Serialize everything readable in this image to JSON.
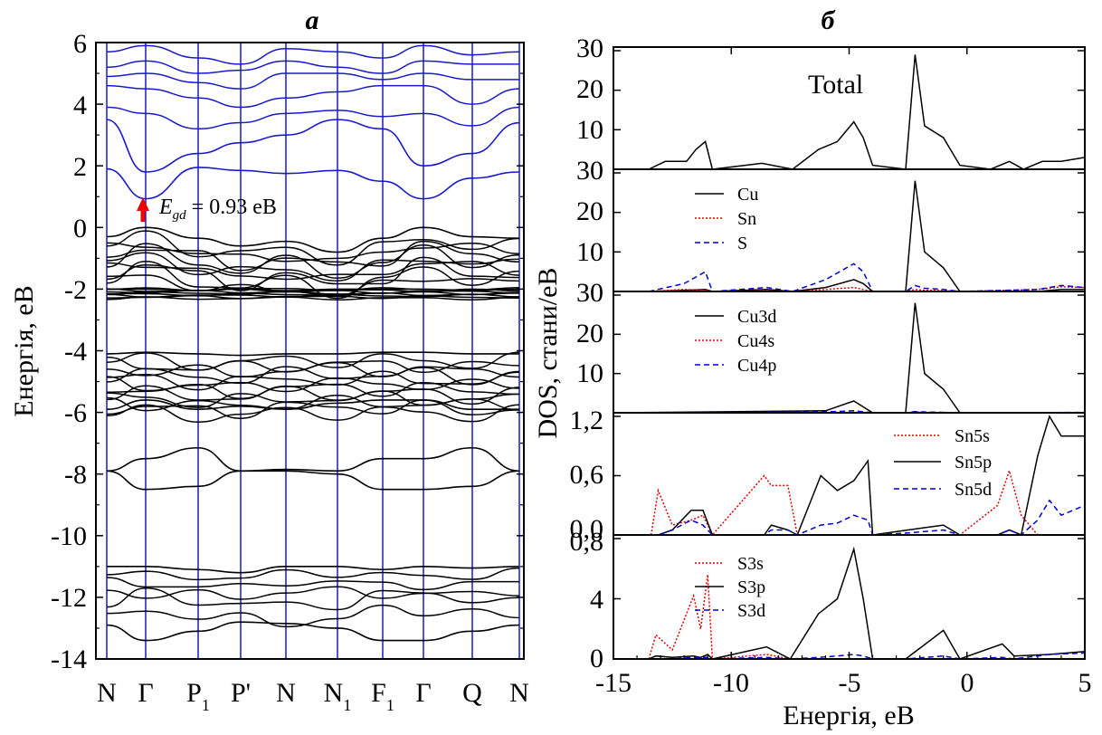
{
  "panel_a": {
    "letter": "a",
    "ylabel": "Енергія, eB",
    "yticks": [
      "6",
      "4",
      "2",
      "0",
      "-2",
      "-4",
      "-6",
      "-8",
      "-10",
      "-12",
      "-14"
    ],
    "kpoints": [
      {
        "main": "N",
        "sub": ""
      },
      {
        "main": "Γ",
        "sub": ""
      },
      {
        "main": "P",
        "sub": "1"
      },
      {
        "main": "P'",
        "sub": ""
      },
      {
        "main": "N",
        "sub": ""
      },
      {
        "main": "N",
        "sub": "1"
      },
      {
        "main": "F",
        "sub": "1"
      },
      {
        "main": "Γ",
        "sub": ""
      },
      {
        "main": "Q",
        "sub": ""
      },
      {
        "main": "N",
        "sub": ""
      }
    ],
    "gap": {
      "symbol": "E",
      "sub": "gd",
      "text": " = 0.93 eB"
    },
    "colors": {
      "conduction": "#1a1acc",
      "valence": "#000000",
      "kline": "#1a1acc",
      "arrow": "#ee0000"
    }
  },
  "panel_b": {
    "letter": "б",
    "ylabel": "DOS, стани/eB",
    "xlabel": "Енергія, eB",
    "xticks": [
      "-15",
      "-10",
      "-5",
      "0",
      "5"
    ],
    "subpanels": [
      {
        "name": "total",
        "title": "Total",
        "yticks": [
          "30",
          "20",
          "10"
        ],
        "legend": []
      },
      {
        "name": "elements",
        "title": "",
        "yticks": [
          "30",
          "20",
          "10"
        ],
        "legend": [
          "Cu",
          "Sn",
          "S"
        ]
      },
      {
        "name": "cu-orbitals",
        "title": "",
        "yticks": [
          "30",
          "20",
          "10"
        ],
        "legend": [
          "Cu3d",
          "Cu4s",
          "Cu4p"
        ]
      },
      {
        "name": "sn-orbitals",
        "title": "",
        "yticks": [
          "1,2",
          "0,6",
          "0,0"
        ],
        "legend": [
          "Sn5s",
          "Sn5p",
          "Sn5d"
        ]
      },
      {
        "name": "s-orbitals",
        "title": "",
        "yticks": [
          "0,8",
          "4",
          "0"
        ],
        "legend": [
          "S3s",
          "S3p",
          "S3d"
        ]
      }
    ],
    "colors": {
      "black": "#000000",
      "red": "#dd0000",
      "blue": "#0000cc"
    }
  },
  "chart_data": [
    {
      "type": "line",
      "title": "a",
      "ylabel": "Енергія, eB",
      "xlabel": "",
      "ylim": [
        -14,
        6
      ],
      "categories": [
        "N",
        "Γ",
        "P1",
        "P'",
        "N",
        "N1",
        "F1",
        "Γ",
        "Q",
        "N"
      ],
      "annotation": "Egd = 0.93 eB",
      "series": [
        {
          "values": [
            1.9,
            0.93,
            1.95,
            1.85,
            1.75,
            1.85,
            1.5,
            0.93,
            1.6,
            1.8
          ]
        },
        {
          "values": [
            3.5,
            1.8,
            2.4,
            2.75,
            3.0,
            3.5,
            3.2,
            2.0,
            2.4,
            3.4
          ]
        },
        {
          "values": [
            -0.3,
            0.0,
            -0.35,
            -0.6,
            -0.45,
            -0.8,
            -0.35,
            0.0,
            -0.3,
            -0.35
          ]
        },
        {
          "values": [
            -2.0,
            -2.0,
            -2.05,
            -2.0,
            -2.05,
            -2.0,
            -2.0,
            -2.0,
            -2.05,
            -2.0
          ]
        },
        {
          "values": [
            -4.1,
            -4.05,
            -4.1,
            -4.15,
            -4.1,
            -4.1,
            -4.05,
            -4.05,
            -4.1,
            -4.1
          ]
        },
        {
          "values": [
            -5.9,
            -5.6,
            -5.9,
            -5.8,
            -5.9,
            -5.7,
            -5.6,
            -5.6,
            -5.9,
            -5.9
          ]
        },
        {
          "values": [
            -7.9,
            -7.5,
            -7.15,
            -7.9,
            -7.85,
            -7.9,
            -7.5,
            -7.5,
            -7.15,
            -7.9
          ]
        },
        {
          "values": [
            -7.9,
            -8.5,
            -8.4,
            -7.9,
            -7.9,
            -8.0,
            -8.5,
            -8.5,
            -8.4,
            -7.9
          ]
        },
        {
          "values": [
            -11.0,
            -11.0,
            -11.1,
            -11.2,
            -11.0,
            -11.0,
            -11.1,
            -11.0,
            -11.05,
            -11.0
          ]
        },
        {
          "values": [
            -12.9,
            -13.4,
            -13.1,
            -12.8,
            -12.85,
            -13.0,
            -13.4,
            -13.4,
            -13.1,
            -12.9
          ]
        }
      ]
    },
    {
      "type": "line",
      "title": "Total",
      "xlabel": "Енергія, eB",
      "ylabel": "DOS, стани/eB",
      "xlim": [
        -15,
        5
      ],
      "ylim": [
        0,
        30
      ],
      "x": [
        -13.5,
        -12.8,
        -11.9,
        -11.5,
        -11.1,
        -10.8,
        -8.7,
        -7.4,
        -6.3,
        -5.5,
        -4.8,
        -4.4,
        -4.0,
        -2.6,
        -2.2,
        -1.8,
        -1.0,
        -0.3,
        1.0,
        1.8,
        2.4,
        3.2,
        4.0,
        5.0
      ],
      "series": [
        {
          "name": "Total",
          "values": [
            0,
            2,
            2,
            5,
            7,
            0,
            1.5,
            0,
            5,
            7,
            12,
            8,
            1,
            0,
            29,
            11,
            8,
            1,
            0,
            2,
            0,
            2,
            2,
            3
          ]
        }
      ]
    },
    {
      "type": "line",
      "xlim": [
        -15,
        5
      ],
      "ylim": [
        0,
        30
      ],
      "x": [
        -13.5,
        -12,
        -11.1,
        -10.8,
        -8.5,
        -7.4,
        -6,
        -4.8,
        -4.4,
        -4.0,
        -2.6,
        -2.2,
        -1.8,
        -1.0,
        -0.3,
        3,
        4,
        5
      ],
      "series": [
        {
          "name": "Cu",
          "values": [
            0,
            0.3,
            0.5,
            0,
            0.5,
            0,
            1,
            3,
            2,
            0,
            0,
            28,
            10,
            6,
            0,
            0,
            0.5,
            0.5
          ]
        },
        {
          "name": "Sn",
          "values": [
            0,
            0.5,
            0.3,
            0,
            0.2,
            0,
            0.5,
            1,
            0.5,
            0,
            0,
            0.5,
            0.3,
            0.2,
            0,
            0.5,
            1.2,
            1
          ]
        },
        {
          "name": "S",
          "values": [
            0,
            2,
            5,
            0,
            1,
            0,
            3,
            7,
            5,
            0,
            0,
            1.5,
            0.8,
            0.5,
            0,
            0.5,
            1.5,
            1
          ]
        }
      ]
    },
    {
      "type": "line",
      "xlim": [
        -15,
        5
      ],
      "ylim": [
        0,
        30
      ],
      "x": [
        -15,
        -6,
        -4.8,
        -4.0,
        -2.6,
        -2.2,
        -1.8,
        -1.0,
        -0.3,
        5
      ],
      "series": [
        {
          "name": "Cu3d",
          "values": [
            0,
            0.5,
            3,
            0,
            0,
            28,
            10,
            6,
            0,
            0
          ]
        },
        {
          "name": "Cu4s",
          "values": [
            0,
            0,
            0.1,
            0,
            0,
            0.2,
            0.1,
            0.1,
            0,
            0
          ]
        },
        {
          "name": "Cu4p",
          "values": [
            0,
            0.2,
            0.5,
            0,
            0,
            0.3,
            0.2,
            0.1,
            0,
            0.1
          ]
        }
      ]
    },
    {
      "type": "line",
      "xlim": [
        -15,
        5
      ],
      "ylim": [
        0,
        1.2
      ],
      "x": [
        -13.4,
        -13.1,
        -12.5,
        -11.7,
        -11.2,
        -10.8,
        -8.6,
        -8.3,
        -7.6,
        -7.2,
        -6.2,
        -5.5,
        -4.8,
        -4.2,
        -4.0,
        -2.5,
        -1.0,
        -0.3,
        1.3,
        1.8,
        2.3,
        3.0,
        3.5,
        4.0,
        5.0
      ],
      "series": [
        {
          "name": "Sn5s",
          "values": [
            0,
            0.45,
            0.1,
            0.15,
            0.2,
            0,
            0.6,
            0.5,
            0.5,
            0,
            0,
            0,
            0,
            0,
            0,
            0,
            0,
            0,
            0.3,
            0.65,
            0.2,
            0,
            0,
            0,
            0
          ]
        },
        {
          "name": "Sn5p",
          "values": [
            0,
            0,
            0.05,
            0.25,
            0.25,
            0,
            0,
            0.1,
            0.05,
            0,
            0.6,
            0.45,
            0.55,
            0.75,
            0,
            0.05,
            0.1,
            0,
            0,
            0.05,
            0,
            0.8,
            1.2,
            1.0,
            1.0
          ]
        },
        {
          "name": "Sn5d",
          "values": [
            0,
            0,
            0.05,
            0.15,
            0.1,
            0,
            0,
            0.05,
            0.05,
            0,
            0.1,
            0.12,
            0.2,
            0.15,
            0,
            0.02,
            0.05,
            0,
            0,
            0.05,
            0,
            0.15,
            0.35,
            0.2,
            0.3
          ]
        }
      ]
    },
    {
      "type": "line",
      "xlim": [
        -15,
        5
      ],
      "ylim": [
        0,
        8
      ],
      "x": [
        -13.5,
        -13.2,
        -12.5,
        -11.6,
        -11.3,
        -11.0,
        -10.8,
        -8.5,
        -7.5,
        -6.3,
        -5.5,
        -4.8,
        -4.4,
        -4.0,
        -2.6,
        -1.0,
        -0.3,
        1.5,
        2.0,
        3.5,
        5.0
      ],
      "series": [
        {
          "name": "S3s",
          "values": [
            0,
            1.6,
            0.6,
            4.2,
            2.0,
            5.6,
            0,
            0.3,
            0,
            0,
            0,
            0,
            0,
            0,
            0,
            0,
            0,
            0,
            0,
            0,
            0
          ]
        },
        {
          "name": "S3p",
          "values": [
            0,
            0.2,
            0.1,
            0.2,
            0.1,
            0.3,
            0,
            0.8,
            0,
            3.0,
            4.0,
            7.3,
            4.0,
            0,
            0,
            1.9,
            0,
            1.0,
            0.2,
            0.3,
            0.5
          ]
        },
        {
          "name": "S3d",
          "values": [
            0,
            0,
            0,
            0.1,
            0.1,
            0.1,
            0,
            0.1,
            0,
            0.1,
            0.2,
            0.3,
            0.2,
            0,
            0,
            0.2,
            0,
            0.1,
            0,
            0.3,
            0.4
          ]
        }
      ]
    }
  ]
}
